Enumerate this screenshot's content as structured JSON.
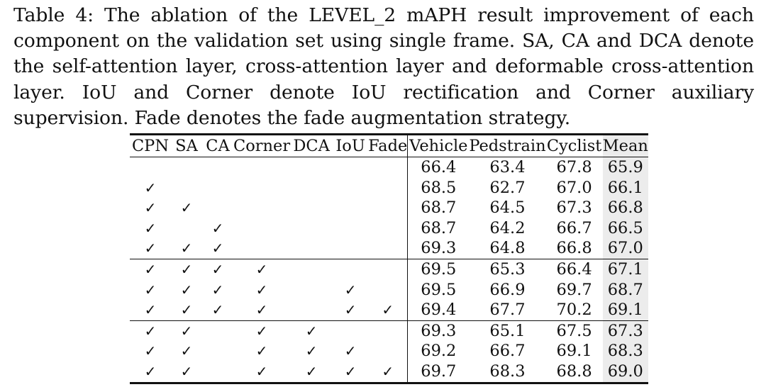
{
  "caption": "Table 4: The ablation of the LEVEL_2 mAPH result improvement of each component on the validation set using single frame. SA, CA and DCA denote the self-attention layer, cross-attention layer and deformable cross-attention layer. IoU and Corner denote IoU rectification and Corner auxiliary supervision. Fade denotes the fade augmentation strategy.",
  "check_glyph": "✓",
  "headers": [
    "CPN",
    "SA",
    "CA",
    "Corner",
    "DCA",
    "IoU",
    "Fade",
    "Vehicle",
    "Pedstrain",
    "Cyclist",
    "Mean"
  ],
  "rows": [
    {
      "flags": [
        false,
        false,
        false,
        false,
        false,
        false,
        false
      ],
      "values": [
        "66.4",
        "63.4",
        "67.8",
        "65.9"
      ]
    },
    {
      "flags": [
        true,
        false,
        false,
        false,
        false,
        false,
        false
      ],
      "values": [
        "68.5",
        "62.7",
        "67.0",
        "66.1"
      ]
    },
    {
      "flags": [
        true,
        true,
        false,
        false,
        false,
        false,
        false
      ],
      "values": [
        "68.7",
        "64.5",
        "67.3",
        "66.8"
      ]
    },
    {
      "flags": [
        true,
        false,
        true,
        false,
        false,
        false,
        false
      ],
      "values": [
        "68.7",
        "64.2",
        "66.7",
        "66.5"
      ]
    },
    {
      "flags": [
        true,
        true,
        true,
        false,
        false,
        false,
        false
      ],
      "values": [
        "69.3",
        "64.8",
        "66.8",
        "67.0"
      ]
    },
    {
      "flags": [
        true,
        true,
        true,
        true,
        false,
        false,
        false
      ],
      "values": [
        "69.5",
        "65.3",
        "66.4",
        "67.1"
      ]
    },
    {
      "flags": [
        true,
        true,
        true,
        true,
        false,
        true,
        false
      ],
      "values": [
        "69.5",
        "66.9",
        "69.7",
        "68.7"
      ]
    },
    {
      "flags": [
        true,
        true,
        true,
        true,
        false,
        true,
        true
      ],
      "values": [
        "69.4",
        "67.7",
        "70.2",
        "69.1"
      ]
    },
    {
      "flags": [
        true,
        true,
        false,
        true,
        true,
        false,
        false
      ],
      "values": [
        "69.3",
        "65.1",
        "67.5",
        "67.3"
      ]
    },
    {
      "flags": [
        true,
        true,
        false,
        true,
        true,
        true,
        false
      ],
      "values": [
        "69.2",
        "66.7",
        "69.1",
        "68.3"
      ]
    },
    {
      "flags": [
        true,
        true,
        false,
        true,
        true,
        true,
        true
      ],
      "values": [
        "69.7",
        "68.3",
        "68.8",
        "69.0"
      ]
    }
  ],
  "group_starts": [
    5,
    8
  ],
  "mean_bg": "#ececec"
}
